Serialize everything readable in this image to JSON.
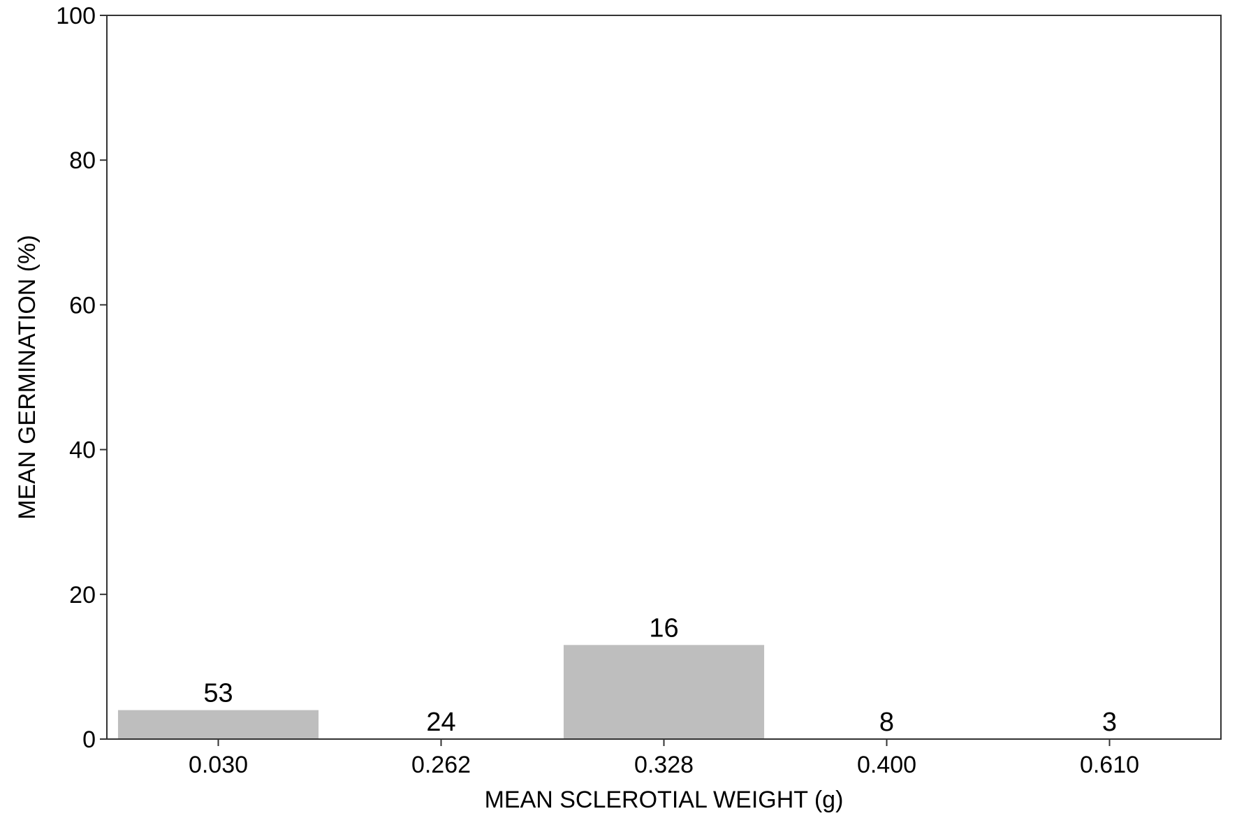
{
  "chart_data": {
    "type": "bar",
    "title": "",
    "xlabel": "MEAN SCLEROTIAL WEIGHT (g)",
    "ylabel": "MEAN GERMINATION (%)",
    "categories": [
      "0.030",
      "0.262",
      "0.328",
      "0.400",
      "0.610"
    ],
    "values": [
      4,
      0,
      13,
      0,
      0
    ],
    "data_labels": [
      "53",
      "24",
      "16",
      "8",
      "3"
    ],
    "ylim": [
      0,
      100
    ],
    "yticks": [
      0,
      20,
      40,
      60,
      80,
      100
    ],
    "ytick_labels": [
      "0",
      "20",
      "40",
      "60",
      "80",
      "100"
    ],
    "grid": false,
    "legend": "none",
    "colors": {
      "bar": "#bebebe",
      "axis": "#333333",
      "text": "#000000",
      "background": "#ffffff"
    }
  }
}
